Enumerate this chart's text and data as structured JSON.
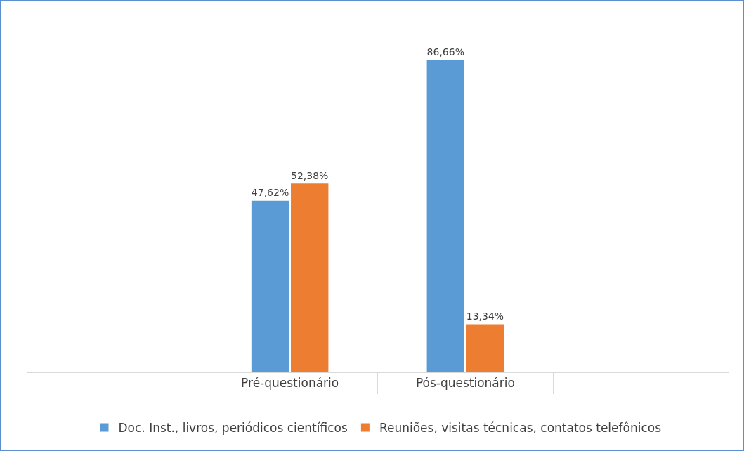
{
  "chart_data": {
    "type": "bar",
    "categories": [
      null,
      "Pré-questionário",
      "Pós-questionário",
      null
    ],
    "series": [
      {
        "name": "Doc. Inst., livros, periódicos científicos",
        "color": "#5b9bd5",
        "values": [
          null,
          47.62,
          86.66,
          null
        ],
        "value_labels": [
          null,
          "47,62%",
          "86,66%",
          null
        ]
      },
      {
        "name": "Reuniões, visitas técnicas, contatos telefônicos",
        "color": "#ed7d31",
        "values": [
          null,
          52.38,
          13.34,
          null
        ],
        "value_labels": [
          null,
          "52,38%",
          "13,34%",
          null
        ]
      }
    ],
    "grid": false,
    "legend": "bottom"
  }
}
